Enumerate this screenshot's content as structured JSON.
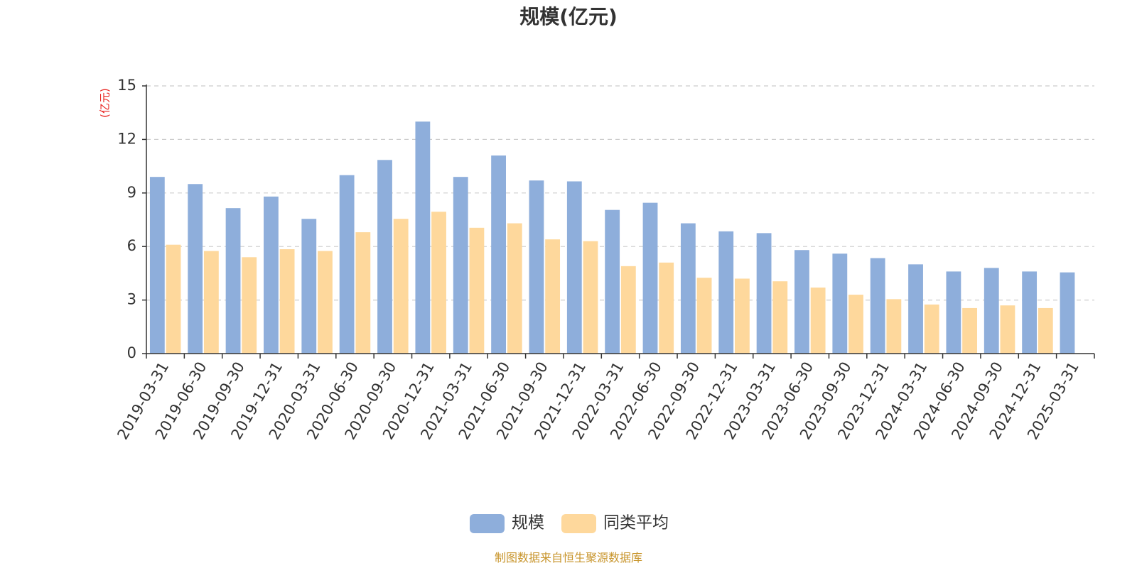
{
  "chart_data": {
    "type": "bar",
    "title": "规模(亿元)",
    "ylabel": "(亿元)",
    "xlabel": "",
    "ylim": [
      0,
      15
    ],
    "yticks": [
      0,
      3,
      6,
      9,
      12,
      15
    ],
    "grid": true,
    "legend_position": "bottom-center",
    "categories": [
      "2019-03-31",
      "2019-06-30",
      "2019-09-30",
      "2019-12-31",
      "2020-03-31",
      "2020-06-30",
      "2020-09-30",
      "2020-12-31",
      "2021-03-31",
      "2021-06-30",
      "2021-09-30",
      "2021-12-31",
      "2022-03-31",
      "2022-06-30",
      "2022-09-30",
      "2022-12-31",
      "2023-03-31",
      "2023-06-30",
      "2023-09-30",
      "2023-12-31",
      "2024-03-31",
      "2024-06-30",
      "2024-09-30",
      "2024-12-31",
      "2025-03-31"
    ],
    "series": [
      {
        "name": "规模",
        "color": "#8eaedb",
        "values": [
          9.9,
          9.5,
          8.15,
          8.8,
          7.55,
          10.0,
          10.85,
          13.0,
          9.9,
          11.1,
          9.7,
          9.65,
          8.05,
          8.45,
          7.3,
          6.85,
          6.75,
          5.8,
          5.6,
          5.35,
          5.0,
          4.6,
          4.8,
          4.6,
          4.55
        ]
      },
      {
        "name": "同类平均",
        "color": "#fed89c",
        "values": [
          6.1,
          5.75,
          5.4,
          5.85,
          5.75,
          6.8,
          7.55,
          7.95,
          7.05,
          7.3,
          6.4,
          6.3,
          4.9,
          5.1,
          4.25,
          4.2,
          4.05,
          3.7,
          3.3,
          3.05,
          2.75,
          2.55,
          2.7,
          2.55,
          null
        ]
      }
    ]
  },
  "source_note": "制图数据来自恒生聚源数据库"
}
